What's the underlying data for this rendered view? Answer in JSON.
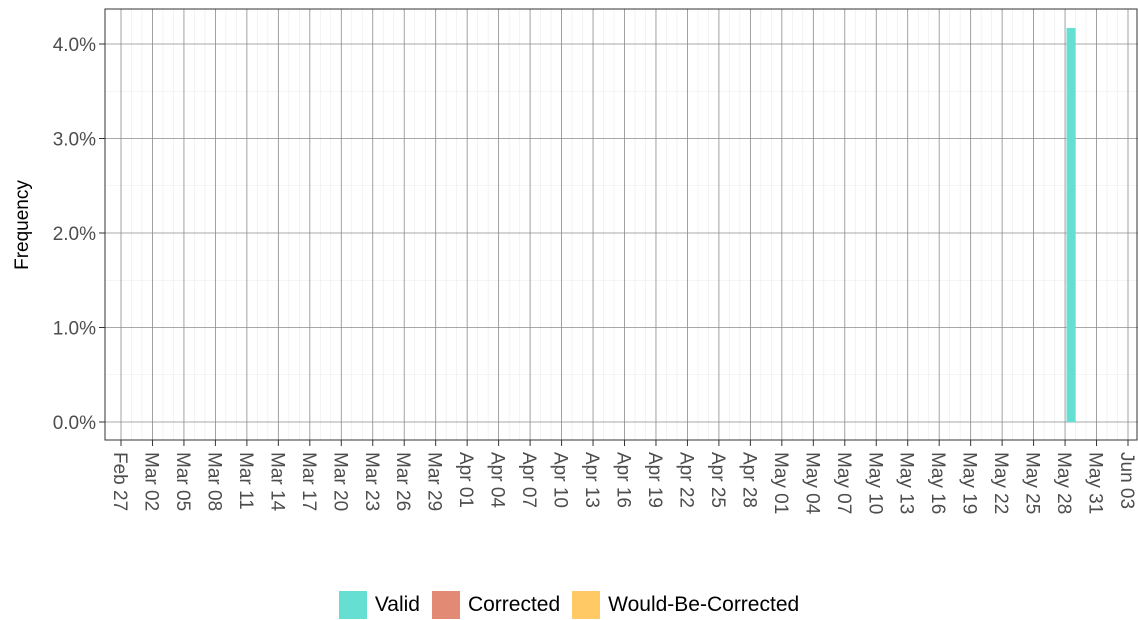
{
  "chart_data": {
    "type": "bar",
    "xlabel": "",
    "ylabel": "Frequency",
    "ylim": [
      0,
      0.044
    ],
    "y_ticks": [
      "0.0%",
      "1.0%",
      "2.0%",
      "3.0%",
      "4.0%"
    ],
    "x_ticks": [
      "Feb 27",
      "Mar 02",
      "Mar 05",
      "Mar 08",
      "Mar 11",
      "Mar 14",
      "Mar 17",
      "Mar 20",
      "Mar 23",
      "Mar 26",
      "Mar 29",
      "Apr 01",
      "Apr 04",
      "Apr 07",
      "Apr 10",
      "Apr 13",
      "Apr 16",
      "Apr 19",
      "Apr 22",
      "Apr 25",
      "Apr 28",
      "May 01",
      "May 04",
      "May 07",
      "May 10",
      "May 13",
      "May 16",
      "May 19",
      "May 22",
      "May 25",
      "May 28",
      "May 31",
      "Jun 03"
    ],
    "xlim": [
      "2020-02-27",
      "2020-06-04"
    ],
    "grid": true,
    "legend_position": "bottom",
    "series": [
      {
        "name": "Valid",
        "color": "#64dfd2",
        "points": [
          {
            "x": "2020-05-27",
            "y": 0.0417
          }
        ]
      },
      {
        "name": "Corrected",
        "color": "#e28a73",
        "points": []
      },
      {
        "name": "Would-Be-Corrected",
        "color": "#ffc966",
        "points": []
      }
    ]
  }
}
